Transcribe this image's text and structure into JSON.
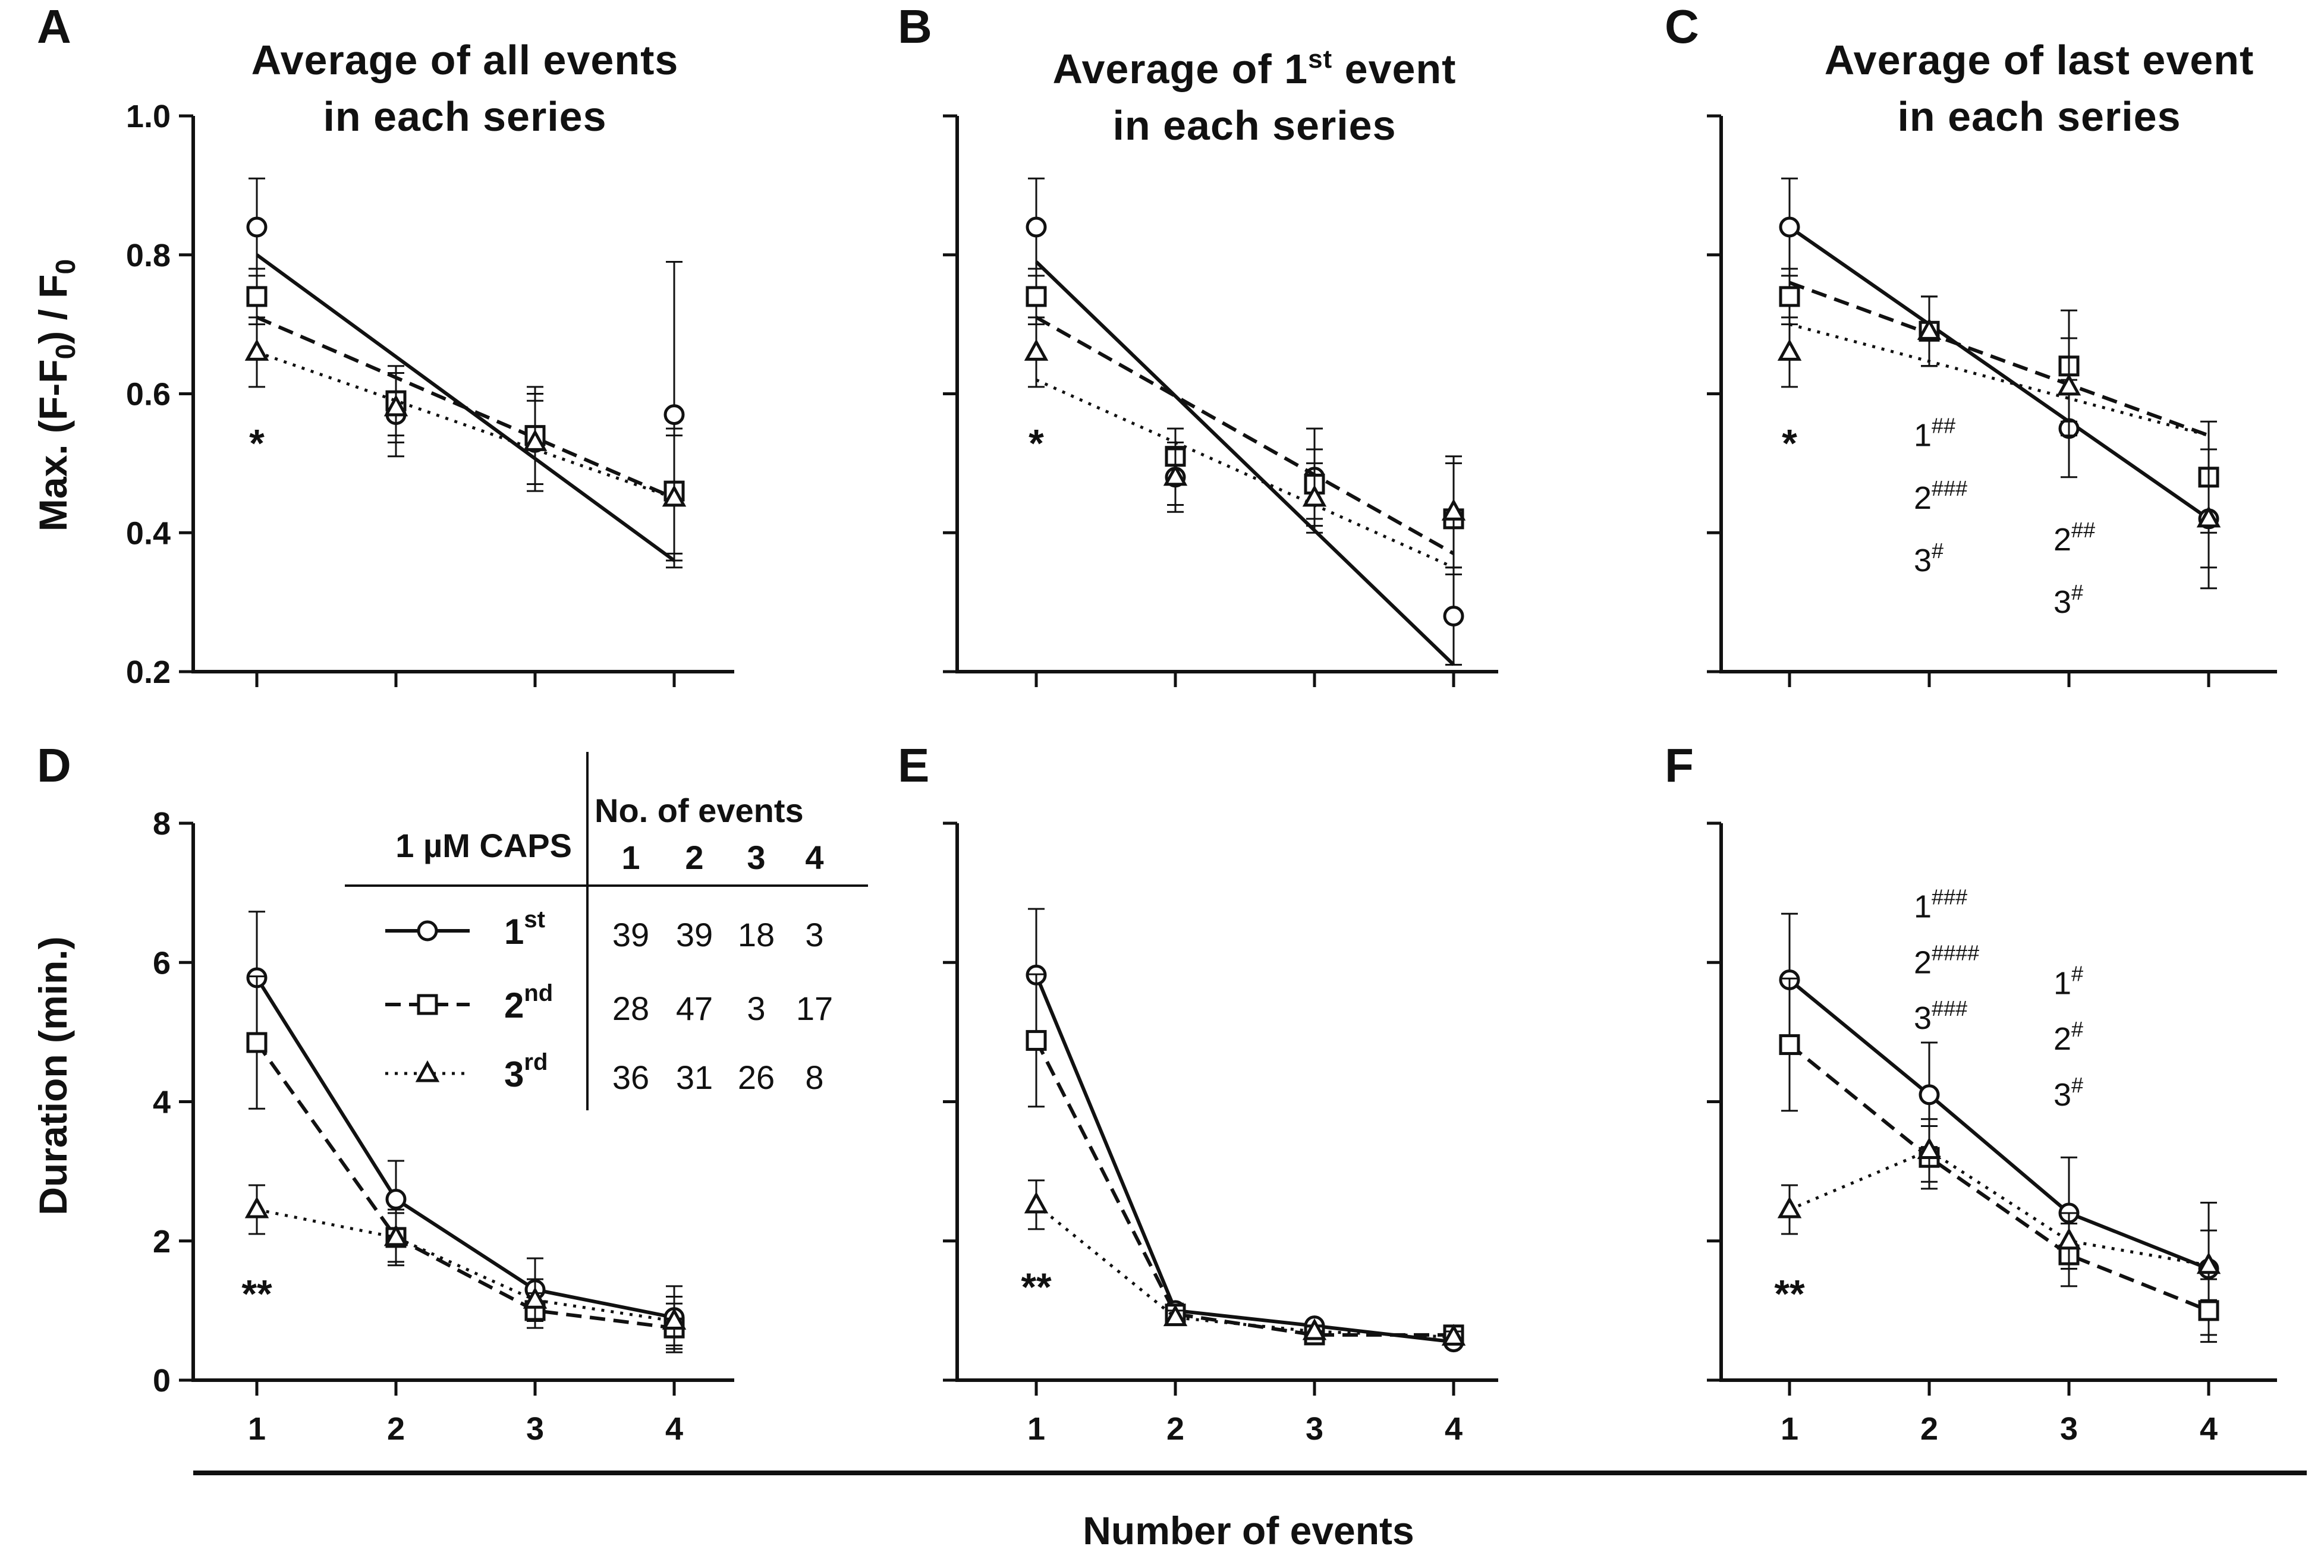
{
  "figure": {
    "shared_xlabel": "Number of events",
    "ylabel_top": "Max. (F-F0) / F0",
    "ylabel_bottom": "Duration (min.)"
  },
  "legend": {
    "header_left": "1 µM CAPS",
    "header_right": "No. of events",
    "columns": [
      "1",
      "2",
      "3",
      "4"
    ],
    "rows": [
      {
        "label": "1",
        "suffix": "st",
        "style": "solid",
        "marker": "circle",
        "counts": [
          "39",
          "39",
          "18",
          "3"
        ]
      },
      {
        "label": "2",
        "suffix": "nd",
        "style": "dashed",
        "marker": "square",
        "counts": [
          "28",
          "47",
          "3",
          "17"
        ]
      },
      {
        "label": "3",
        "suffix": "rd",
        "style": "dotted",
        "marker": "triangle",
        "counts": [
          "36",
          "31",
          "26",
          "8"
        ]
      }
    ]
  },
  "chart_data": [
    {
      "panel": "A",
      "type": "line",
      "title_lines": [
        "Average of all events",
        "in each series"
      ],
      "xlim": [
        0.5,
        4.5
      ],
      "ylim": [
        0.2,
        1.0
      ],
      "yticks": [
        "0.2",
        "0.4",
        "0.6",
        "0.8",
        "1.0"
      ],
      "show_ytick_labels": true,
      "x": [
        1,
        2,
        3,
        4
      ],
      "series": [
        {
          "name": "1st",
          "values": [
            0.84,
            0.57,
            0.53,
            0.57
          ],
          "err": [
            0.07,
            0.06,
            0.07,
            0.22
          ],
          "fit": [
            0.8,
            0.36
          ]
        },
        {
          "name": "2nd",
          "values": [
            0.74,
            0.59,
            0.54,
            0.46
          ],
          "err": [
            0.04,
            0.05,
            0.07,
            0.09
          ],
          "fit": [
            0.71,
            0.45
          ]
        },
        {
          "name": "3rd",
          "values": [
            0.66,
            0.58,
            0.53,
            0.45
          ],
          "err": [
            0.05,
            0.05,
            0.06,
            0.09
          ],
          "fit": [
            0.66,
            0.45
          ]
        }
      ],
      "annotations": [
        {
          "text": "*",
          "x": 1,
          "y": 0.53,
          "bold": true
        }
      ]
    },
    {
      "panel": "B",
      "type": "line",
      "title_lines": [
        "Average of 1st event",
        "in each series"
      ],
      "xlim": [
        0.5,
        4.5
      ],
      "ylim": [
        0.2,
        1.0
      ],
      "yticks": [
        "0.2",
        "0.4",
        "0.6",
        "0.8",
        "1.0"
      ],
      "show_ytick_labels": false,
      "x": [
        1,
        2,
        3,
        4
      ],
      "series": [
        {
          "name": "1st",
          "values": [
            0.84,
            0.48,
            0.48,
            0.28
          ],
          "err": [
            0.07,
            0.05,
            0.07,
            0.07
          ],
          "fit": [
            0.79,
            0.21
          ]
        },
        {
          "name": "2nd",
          "values": [
            0.74,
            0.51,
            0.47,
            0.42
          ],
          "err": [
            0.04,
            0.04,
            0.05,
            0.08
          ],
          "fit": [
            0.71,
            0.37
          ]
        },
        {
          "name": "3rd",
          "values": [
            0.66,
            0.48,
            0.45,
            0.43
          ],
          "err": [
            0.05,
            0.04,
            0.05,
            0.08
          ],
          "fit": [
            0.62,
            0.35
          ]
        }
      ],
      "annotations": [
        {
          "text": "*",
          "x": 1,
          "y": 0.53,
          "bold": true
        }
      ]
    },
    {
      "panel": "C",
      "type": "line",
      "title_lines": [
        "Average of last event",
        "in each series"
      ],
      "xlim": [
        0.5,
        4.5
      ],
      "ylim": [
        0.2,
        1.0
      ],
      "yticks": [
        "0.2",
        "0.4",
        "0.6",
        "0.8",
        "1.0"
      ],
      "show_ytick_labels": false,
      "x": [
        1,
        2,
        3,
        4
      ],
      "series": [
        {
          "name": "1st",
          "values": [
            0.84,
            0.69,
            0.55,
            0.42
          ],
          "err": [
            0.07,
            0.05,
            0.07,
            0.07
          ],
          "fit": [
            0.84,
            0.42
          ]
        },
        {
          "name": "2nd",
          "values": [
            0.74,
            0.69,
            0.64,
            0.48
          ],
          "err": [
            0.04,
            0.05,
            0.08,
            0.08
          ],
          "fit": [
            0.76,
            0.54
          ]
        },
        {
          "name": "3rd",
          "values": [
            0.66,
            0.69,
            0.61,
            0.42
          ],
          "err": [
            0.05,
            0.05,
            0.07,
            0.1
          ],
          "fit": [
            0.7,
            0.54
          ]
        }
      ],
      "annotations": [
        {
          "text": "*",
          "x": 1,
          "y": 0.53,
          "bold": true
        },
        {
          "text": "1",
          "sup": "##",
          "x": 2,
          "y": 0.54
        },
        {
          "text": "2",
          "sup": "###",
          "x": 2,
          "y": 0.45
        },
        {
          "text": "3",
          "sup": "#",
          "x": 2,
          "y": 0.36
        },
        {
          "text": "2",
          "sup": "##",
          "x": 3,
          "y": 0.39
        },
        {
          "text": "3",
          "sup": "#",
          "x": 3,
          "y": 0.3
        }
      ]
    },
    {
      "panel": "D",
      "type": "line",
      "xlim": [
        0.5,
        4.5
      ],
      "ylim": [
        0,
        8
      ],
      "yticks": [
        "0",
        "2",
        "4",
        "6",
        "8"
      ],
      "show_ytick_labels": true,
      "xticks": [
        "1",
        "2",
        "3",
        "4"
      ],
      "x": [
        1,
        2,
        3,
        4
      ],
      "series": [
        {
          "name": "1st",
          "values": [
            5.78,
            2.6,
            1.3,
            0.9
          ],
          "err": [
            0.95,
            0.55,
            0.45,
            0.45
          ]
        },
        {
          "name": "2nd",
          "values": [
            4.85,
            2.05,
            1.0,
            0.75
          ],
          "err": [
            0.95,
            0.35,
            0.25,
            0.35
          ]
        },
        {
          "name": "3rd",
          "values": [
            2.45,
            2.05,
            1.15,
            0.85
          ],
          "err": [
            0.35,
            0.4,
            0.3,
            0.35
          ]
        }
      ],
      "annotations": [
        {
          "text": "**",
          "x": 1,
          "y": 1.25,
          "bold": true
        }
      ]
    },
    {
      "panel": "E",
      "type": "line",
      "xlim": [
        0.5,
        4.5
      ],
      "ylim": [
        0,
        8
      ],
      "yticks": [
        "0",
        "2",
        "4",
        "6",
        "8"
      ],
      "show_ytick_labels": false,
      "xticks": [
        "1",
        "2",
        "3",
        "4"
      ],
      "x": [
        1,
        2,
        3,
        4
      ],
      "series": [
        {
          "name": "1st",
          "values": [
            5.82,
            1.0,
            0.78,
            0.55
          ],
          "err": [
            0.95,
            0.1,
            0.08,
            0.08
          ]
        },
        {
          "name": "2nd",
          "values": [
            4.88,
            0.95,
            0.65,
            0.65
          ],
          "err": [
            0.95,
            0.1,
            0.08,
            0.08
          ]
        },
        {
          "name": "3rd",
          "values": [
            2.52,
            0.9,
            0.7,
            0.62
          ],
          "err": [
            0.35,
            0.1,
            0.08,
            0.08
          ]
        }
      ],
      "annotations": [
        {
          "text": "**",
          "x": 1,
          "y": 1.35,
          "bold": true
        }
      ]
    },
    {
      "panel": "F",
      "type": "line",
      "xlim": [
        0.5,
        4.5
      ],
      "ylim": [
        0,
        8
      ],
      "yticks": [
        "0",
        "2",
        "4",
        "6",
        "8"
      ],
      "show_ytick_labels": false,
      "xticks": [
        "1",
        "2",
        "3",
        "4"
      ],
      "x": [
        1,
        2,
        3,
        4
      ],
      "series": [
        {
          "name": "1st",
          "values": [
            5.75,
            4.1,
            2.4,
            1.6
          ],
          "err": [
            0.95,
            0.75,
            0.8,
            0.95
          ]
        },
        {
          "name": "2nd",
          "values": [
            4.82,
            3.2,
            1.8,
            1.0
          ],
          "err": [
            0.95,
            0.45,
            0.45,
            0.45
          ]
        },
        {
          "name": "3rd",
          "values": [
            2.45,
            3.3,
            2.0,
            1.65
          ],
          "err": [
            0.35,
            0.45,
            0.4,
            0.5
          ]
        }
      ],
      "annotations": [
        {
          "text": "**",
          "x": 1,
          "y": 1.25,
          "bold": true
        },
        {
          "text": "1",
          "sup": "###",
          "x": 2,
          "y": 6.8
        },
        {
          "text": "2",
          "sup": "####",
          "x": 2,
          "y": 6.0
        },
        {
          "text": "3",
          "sup": "###",
          "x": 2,
          "y": 5.2
        },
        {
          "text": "1",
          "sup": "#",
          "x": 3,
          "y": 5.7
        },
        {
          "text": "2",
          "sup": "#",
          "x": 3,
          "y": 4.9
        },
        {
          "text": "3",
          "sup": "#",
          "x": 3,
          "y": 4.1
        }
      ]
    }
  ]
}
